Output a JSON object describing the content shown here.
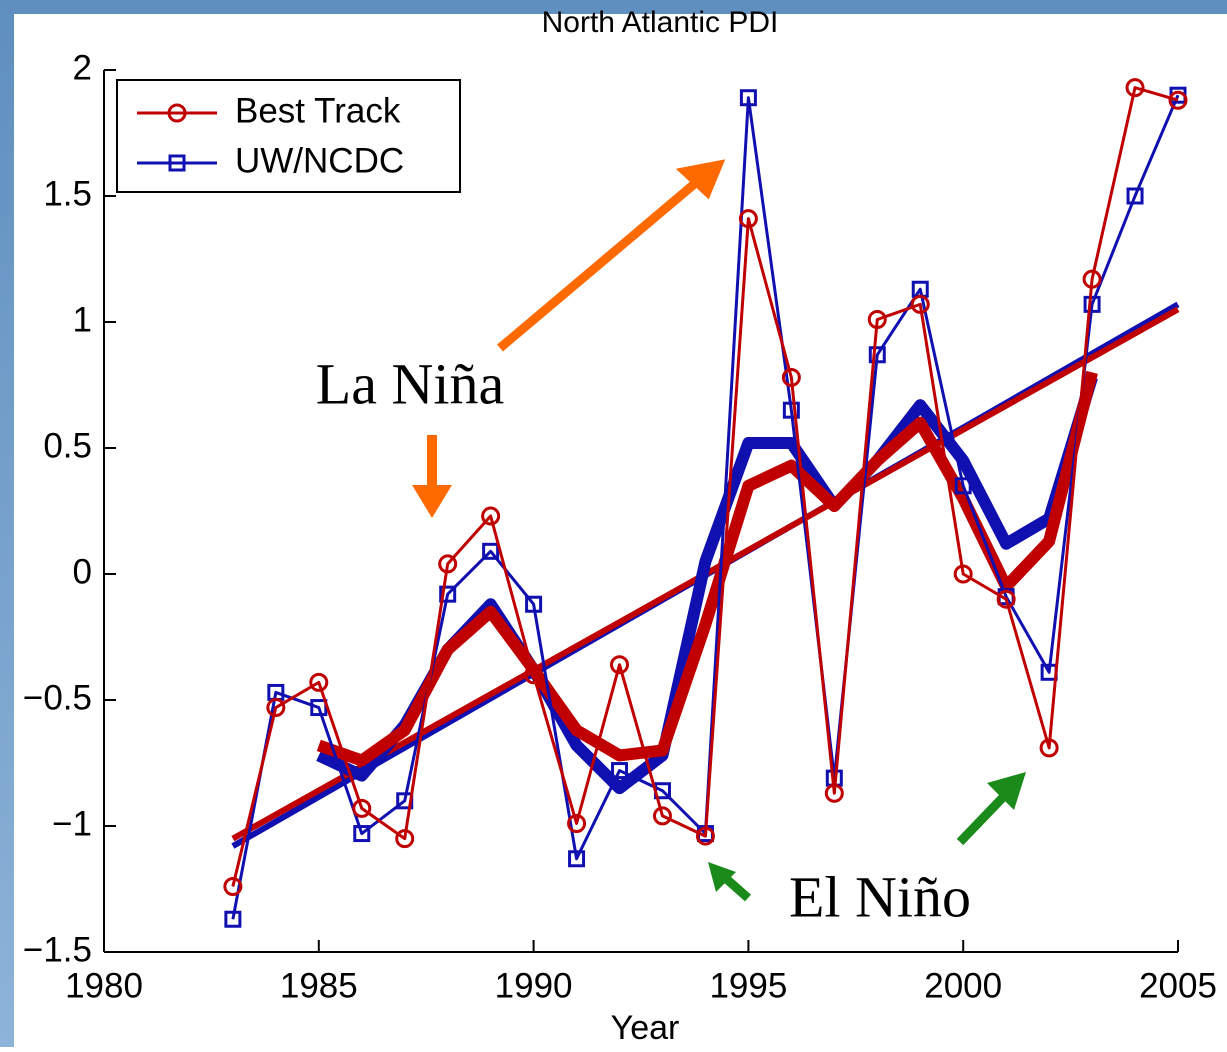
{
  "chart_data": {
    "type": "line",
    "title": "North Atlantic PDI",
    "x_label": "Year",
    "x": [
      1983,
      1984,
      1985,
      1986,
      1987,
      1988,
      1989,
      1990,
      1991,
      1992,
      1993,
      1994,
      1995,
      1996,
      1997,
      1998,
      1999,
      2000,
      2001,
      2002,
      2003,
      2004,
      2005
    ],
    "series": [
      {
        "name": "Best Track",
        "color": "#c00000",
        "marker": "circle",
        "line_width": 3,
        "values": [
          -1.24,
          -0.53,
          -0.43,
          -0.93,
          -1.05,
          0.04,
          0.23,
          -0.4,
          -0.99,
          -0.36,
          -0.96,
          -1.04,
          1.41,
          0.78,
          -0.87,
          1.01,
          1.07,
          0.0,
          -0.1,
          -0.69,
          1.17,
          1.93,
          1.88
        ]
      },
      {
        "name": "UW/NCDC",
        "color": "#1010b0",
        "marker": "square",
        "line_width": 3,
        "values": [
          -1.37,
          -0.47,
          -0.53,
          -1.03,
          -0.9,
          -0.08,
          0.09,
          -0.12,
          -1.13,
          -0.78,
          -0.86,
          -1.03,
          1.89,
          0.65,
          -0.81,
          0.87,
          1.13,
          0.35,
          -0.09,
          -0.39,
          1.07,
          1.5,
          1.9
        ]
      },
      {
        "color": "#c00000",
        "line_width": 12,
        "values": [
          null,
          null,
          -0.68,
          -0.74,
          -0.62,
          -0.3,
          -0.15,
          -0.38,
          -0.62,
          -0.72,
          -0.7,
          -0.2,
          0.35,
          0.43,
          0.27,
          0.45,
          0.6,
          0.3,
          -0.05,
          0.13,
          0.8,
          null,
          null
        ]
      },
      {
        "color": "#1010b0",
        "line_width": 12,
        "values": [
          null,
          null,
          -0.72,
          -0.8,
          -0.6,
          -0.3,
          -0.12,
          -0.38,
          -0.68,
          -0.85,
          -0.72,
          0.05,
          0.52,
          0.52,
          0.27,
          0.45,
          0.67,
          0.45,
          0.12,
          0.22,
          0.78,
          null,
          null
        ]
      },
      {
        "color": "#c00000",
        "line_width": 6,
        "x": [
          1983,
          2005
        ],
        "values": [
          -1.05,
          1.05
        ]
      },
      {
        "color": "#1010b0",
        "line_width": 6,
        "x": [
          1983,
          2005
        ],
        "values": [
          -1.08,
          1.07
        ]
      }
    ],
    "xlim": [
      1980,
      2005
    ],
    "xticks": [
      1980,
      1985,
      1990,
      1995,
      2000,
      2005
    ],
    "ylim": [
      -1.5,
      2
    ],
    "yticks": [
      {
        "value": -1.5,
        "label": "−1.5"
      },
      {
        "value": -1,
        "label": "−1"
      },
      {
        "value": -0.5,
        "label": "−0.5"
      },
      0,
      0.5,
      1,
      1.5,
      2
    ],
    "legend": "upper left",
    "annotations": [
      {
        "text": "La Niña"
      },
      {
        "text": "El Niño"
      }
    ]
  }
}
